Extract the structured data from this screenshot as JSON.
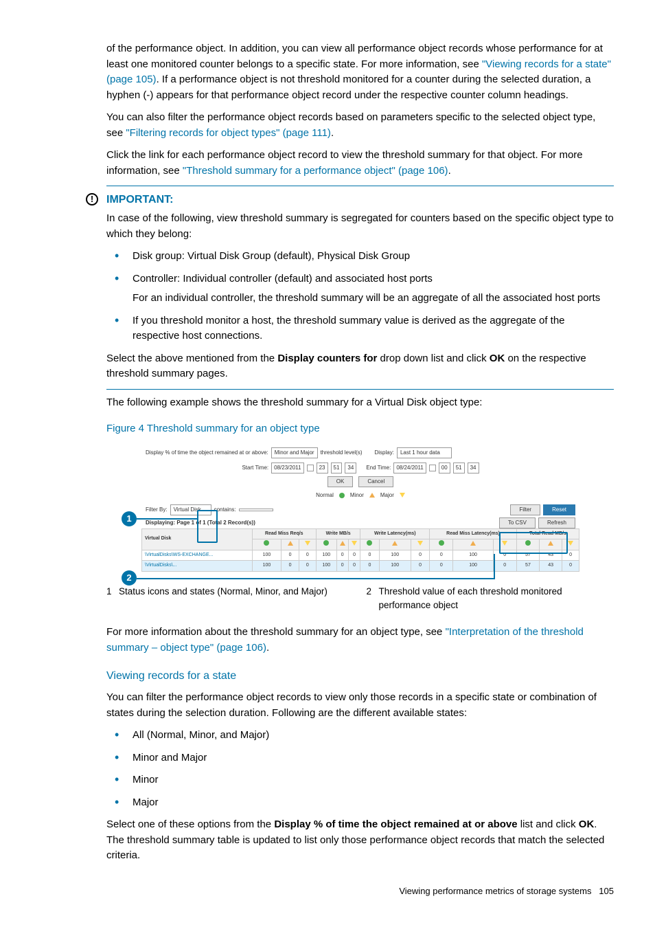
{
  "para1_a": "of the performance object. In addition, you can view all performance object records whose performance for at least one monitored counter belongs to a specific state. For more information, see ",
  "link1": "\"Viewing records for a state\" (page 105)",
  "para1_b": ". If a performance object is not threshold monitored for a counter during the selected duration, a hyphen (-) appears for that performance object record under the respective counter column headings.",
  "para2_a": "You can also filter the performance object records based on parameters specific to the selected object type, see ",
  "link2": "\"Filtering records for object types\" (page 111)",
  "para2_b": ".",
  "para3_a": "Click the link for each performance object record to view the threshold summary for that object. For more information, see ",
  "link3": "\"Threshold summary for a performance object\" (page 106)",
  "para3_b": ".",
  "important": {
    "title": "IMPORTANT:",
    "intro": "In case of the following, view threshold summary is segregated for counters based on the specific object type to which they belong:",
    "b1": "Disk group: Virtual Disk Group (default), Physical Disk Group",
    "b2": "Controller: Individual controller (default) and associated host ports",
    "b2_extra": "For an individual controller, the threshold summary will be an aggregate of all the associated host ports",
    "b3": "If you threshold monitor a host, the threshold summary value is derived as the aggregate of the respective host connections.",
    "select_a": "Select the above mentioned from the ",
    "select_bold1": "Display counters for",
    "select_b": " drop down list and click ",
    "select_bold2": "OK",
    "select_c": " on the respective threshold summary pages."
  },
  "para_example": "The following example shows the threshold summary for a Virtual Disk object type:",
  "figure_title": "Figure 4 Threshold summary for an object type",
  "figure": {
    "top_label": "Display % of time the object remained at or above:",
    "top_sel": "Minor and Major",
    "thresh_label": "threshold level(s)",
    "display_label": "Display:",
    "display_sel": "Last 1 hour data",
    "start_time": "Start Time:",
    "end_time": "End Time:",
    "date1": "08/23/2011",
    "date2": "08/24/2011",
    "t_h": "23",
    "t_m": "51",
    "t_s": "34",
    "t2_h": "00",
    "t2_m": "51",
    "t2_s": "34",
    "ok": "OK",
    "cancel": "Cancel",
    "normal": "Normal",
    "minor": "Minor",
    "major": "Major",
    "filterby": "Filter By:",
    "filter_sel": "Virtual Disk",
    "contains": "contains:",
    "filter_btn": "Filter",
    "reset_btn": "Reset",
    "displaying": "Displaying: Page 1 of 1 (Total 2 Record(s))",
    "csv": "To CSV",
    "refresh": "Refresh",
    "col_vd": "Virtual Disk",
    "groups": [
      "Read Miss Req/s",
      "Write MB/s",
      "Write Latency(ms)",
      "Read Miss Latency(ms)",
      "Total Read MB/s"
    ],
    "rows": [
      {
        "name": "\\VirtualDisks\\WS-EXCHANGE...",
        "vals": [
          100,
          0,
          0,
          100,
          0,
          0,
          0,
          100,
          0,
          0,
          100,
          0,
          57,
          43,
          0
        ]
      },
      {
        "name": "\\VirtualDisks\\...",
        "vals": [
          100,
          0,
          0,
          100,
          0,
          0,
          0,
          100,
          0,
          0,
          100,
          0,
          57,
          43,
          0
        ]
      }
    ]
  },
  "legend": {
    "n1": "1",
    "t1": "Status icons and states (Normal, Minor, and Major)",
    "n2": "2",
    "t2": "Threshold value of each threshold monitored performance object"
  },
  "para_more_a": "For more information about the threshold summary for an object type, see ",
  "link_more": "\"Interpretation of the threshold summary – object type\" (page 106)",
  "para_more_b": ".",
  "section2": {
    "title": "Viewing records for a state",
    "intro": "You can filter the performance object records to view only those records in a specific state or combination of states during the selection duration. Following are the different available states:",
    "b1": "All (Normal, Minor, and Major)",
    "b2": "Minor and Major",
    "b3": "Minor",
    "b4": "Major",
    "out_a": "Select one of these options from the ",
    "out_bold1": "Display % of time the object remained at or above",
    "out_b": " list and click ",
    "out_bold2": "OK",
    "out_c": ". The threshold summary table is updated to list only those performance object records that match the selected criteria."
  },
  "footer_a": "Viewing performance metrics of storage systems",
  "footer_b": "105"
}
